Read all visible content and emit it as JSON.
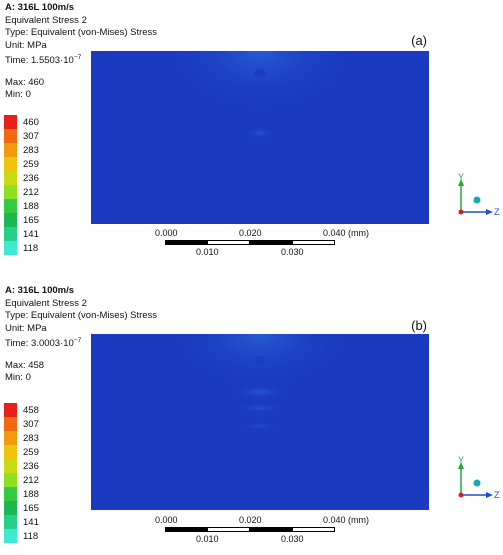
{
  "panels": [
    {
      "title": "A: 316L 100m/s",
      "result_name": "Equivalent Stress 2",
      "type": "Type: Equivalent (von-Mises) Stress",
      "unit": "Unit: MPa",
      "time_prefix": "Time: 1.5503·10",
      "time_exp": "−7",
      "max": "Max: 460",
      "min": "Min: 0",
      "tag": "(a)",
      "legend": [
        "460",
        "307",
        "283",
        "259",
        "236",
        "212",
        "188",
        "165",
        "141",
        "118"
      ]
    },
    {
      "title": "A: 316L 100m/s",
      "result_name": "Equivalent Stress 2",
      "type": "Type: Equivalent (von-Mises) Stress",
      "unit": "Unit: MPa",
      "time_prefix": "Time: 3.0003·10",
      "time_exp": "−7",
      "max": "Max: 458",
      "min": "Min: 0",
      "tag": "(b)",
      "legend": [
        "458",
        "307",
        "283",
        "259",
        "236",
        "212",
        "188",
        "165",
        "141",
        "118"
      ]
    }
  ],
  "legend_colors": [
    "#e8201c",
    "#f06a12",
    "#f29a0e",
    "#efc40f",
    "#c9da17",
    "#8ee122",
    "#37c942",
    "#19b94f",
    "#25d08a",
    "#3ee9cf"
  ],
  "scale_bar": {
    "top_ticks": [
      "0.000",
      "0.020",
      "0.040 (mm)"
    ],
    "bottom_ticks": [
      "0.010",
      "0.030"
    ]
  },
  "triad": {
    "y": "Y",
    "z": "Z"
  }
}
